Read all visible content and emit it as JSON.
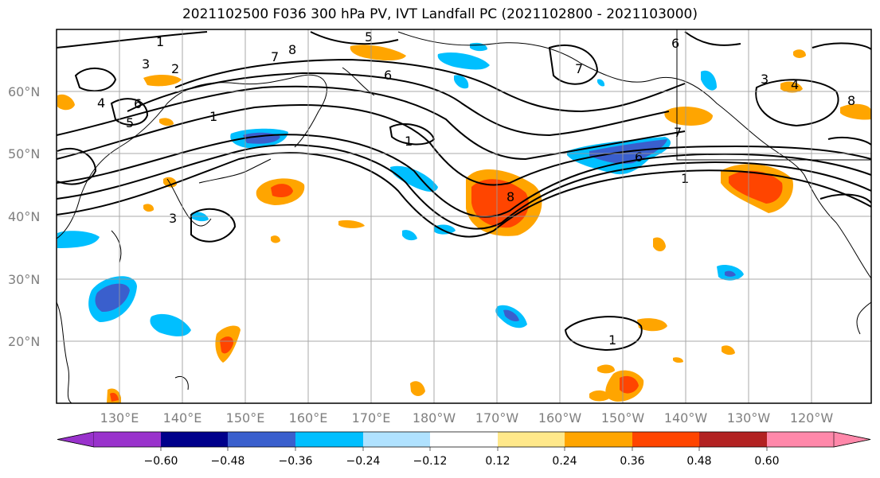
{
  "title": "2021102500 F036 300 hPa PV, IVT Landfall PC (2021102800 - 2021103000)",
  "lat_labels": [
    "60°N",
    "50°N",
    "40°N",
    "30°N",
    "20°N"
  ],
  "lon_labels": [
    "130°E",
    "140°E",
    "150°E",
    "160°E",
    "170°E",
    "180°W",
    "170°W",
    "160°W",
    "150°W",
    "140°W",
    "130°W",
    "120°W"
  ],
  "colorbar": {
    "tick_labels": [
      "−0.60",
      "−0.48",
      "−0.36",
      "−0.24",
      "−0.12",
      "0.12",
      "0.24",
      "0.36",
      "0.48",
      "0.60"
    ],
    "colors": [
      "#9932cc",
      "#00008b",
      "#3a5fcd",
      "#00bfff",
      "#b0e2ff",
      "#ffffff",
      "#ffe88a",
      "#ffa500",
      "#ff4500",
      "#b22222",
      "#ff88aa"
    ]
  },
  "contour_labels": [
    "1",
    "2",
    "3",
    "4",
    "5",
    "6",
    "7",
    "8"
  ]
}
